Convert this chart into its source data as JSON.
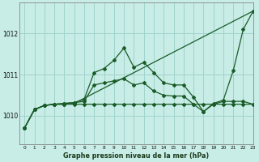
{
  "title": "Graphe pression niveau de la mer (hPa)",
  "background_color": "#c8ece6",
  "grid_color": "#a0d4cc",
  "line_color": "#1a5c28",
  "xlim": [
    -0.5,
    23
  ],
  "ylim": [
    1009.3,
    1012.75
  ],
  "yticks": [
    1010,
    1011,
    1012
  ],
  "xticks": [
    0,
    1,
    2,
    3,
    4,
    5,
    6,
    7,
    8,
    9,
    10,
    11,
    12,
    13,
    14,
    15,
    16,
    17,
    18,
    19,
    20,
    21,
    22,
    23
  ],
  "series_flat": {
    "x": [
      0,
      1,
      2,
      3,
      4,
      5,
      6,
      7,
      8,
      9,
      10,
      11,
      12,
      13,
      14,
      15,
      16,
      17,
      18,
      19,
      20,
      21,
      22,
      23
    ],
    "y": [
      1009.7,
      1010.15,
      1010.25,
      1010.28,
      1010.28,
      1010.28,
      1010.28,
      1010.28,
      1010.28,
      1010.28,
      1010.28,
      1010.28,
      1010.28,
      1010.28,
      1010.28,
      1010.28,
      1010.28,
      1010.28,
      1010.28,
      1010.28,
      1010.28,
      1010.28,
      1010.28,
      1010.28
    ]
  },
  "series_diag": {
    "x": [
      0,
      1,
      2,
      3,
      4,
      5,
      23
    ],
    "y": [
      1009.7,
      1010.15,
      1010.25,
      1010.28,
      1010.28,
      1010.3,
      1012.55
    ]
  },
  "series_mid": {
    "x": [
      0,
      1,
      2,
      3,
      4,
      5,
      6,
      7,
      8,
      9,
      10,
      11,
      12,
      13,
      14,
      15,
      16,
      17,
      18,
      19,
      20,
      21,
      22,
      23
    ],
    "y": [
      1009.7,
      1010.15,
      1010.25,
      1010.28,
      1010.3,
      1010.32,
      1010.35,
      1010.75,
      1010.8,
      1010.85,
      1010.9,
      1010.75,
      1010.8,
      1010.6,
      1010.5,
      1010.48,
      1010.48,
      1010.28,
      1010.1,
      1010.28,
      1010.35,
      1010.35,
      1010.35,
      1010.28
    ]
  },
  "series_peak": {
    "x": [
      0,
      1,
      2,
      3,
      4,
      5,
      6,
      7,
      8,
      9,
      10,
      11,
      12,
      13,
      14,
      15,
      16,
      17,
      18,
      19,
      20,
      21,
      22,
      23
    ],
    "y": [
      1009.7,
      1010.15,
      1010.25,
      1010.28,
      1010.3,
      1010.32,
      1010.4,
      1011.05,
      1011.15,
      1011.35,
      1011.65,
      1011.18,
      1011.3,
      1011.05,
      1010.8,
      1010.75,
      1010.75,
      1010.45,
      1010.1,
      1010.3,
      1010.38,
      1011.1,
      1012.1,
      1012.55
    ]
  }
}
